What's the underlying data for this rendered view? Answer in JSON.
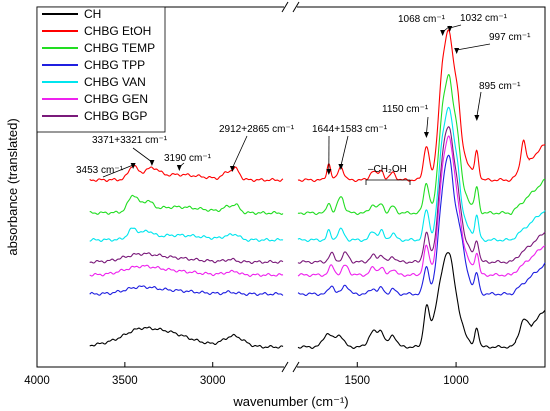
{
  "chart_data": {
    "type": "line",
    "xlabel": "wavenumber (cm⁻¹)",
    "ylabel": "absorbance (translated)",
    "x_reversed": true,
    "x_break": [
      2600,
      1800
    ],
    "xlim_left": [
      4000,
      2600
    ],
    "xlim_right": [
      1800,
      550
    ],
    "x_ticks": [
      4000,
      3500,
      3000,
      1500,
      1000
    ],
    "grid": false,
    "legend_position": "top-left",
    "series": [
      {
        "name": "CH",
        "color": "#000000"
      },
      {
        "name": "CHBG EtOH",
        "color": "#ff0000"
      },
      {
        "name": "CHBG TEMP",
        "color": "#22dd22"
      },
      {
        "name": "CHBG TPP",
        "color": "#1f1fe0"
      },
      {
        "name": "CHBG VAN",
        "color": "#00e5ee"
      },
      {
        "name": "CHBG GEN",
        "color": "#ee22ee"
      },
      {
        "name": "CHBG BGP",
        "color": "#7a1a7a"
      }
    ],
    "annotations": [
      {
        "text": "3453 cm⁻¹",
        "x": 3453
      },
      {
        "text": "3371+3321 cm⁻¹",
        "x": 3346
      },
      {
        "text": "3190 cm⁻¹",
        "x": 3190
      },
      {
        "text": "2912+2865 cm⁻¹",
        "x": 2888
      },
      {
        "text": "1644+1583 cm⁻¹",
        "x": 1614
      },
      {
        "text": "–CH₂OH",
        "x": 1400
      },
      {
        "text": "1150 cm⁻¹",
        "x": 1150
      },
      {
        "text": "1068 cm⁻¹",
        "x": 1068
      },
      {
        "text": "1032 cm⁻¹",
        "x": 1032
      },
      {
        "text": "997 cm⁻¹",
        "x": 997
      },
      {
        "text": "895 cm⁻¹",
        "x": 895
      }
    ]
  }
}
